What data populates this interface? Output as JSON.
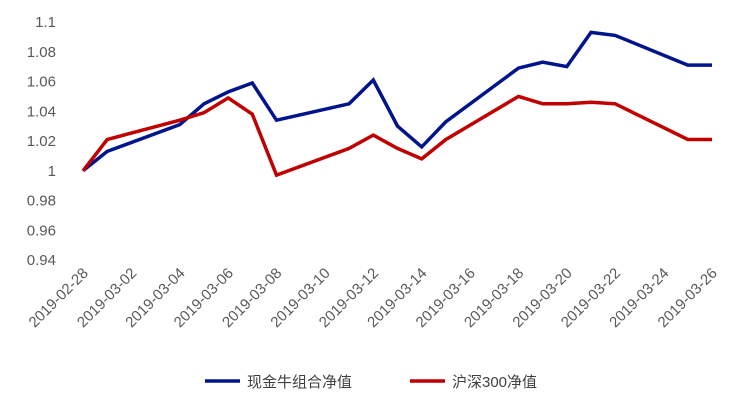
{
  "chart_data": {
    "type": "line",
    "title": "",
    "xlabel": "",
    "ylabel": "",
    "ylim": [
      0.94,
      1.1
    ],
    "yticks": [
      "0.94",
      "0.96",
      "0.98",
      "1",
      "1.02",
      "1.04",
      "1.06",
      "1.08",
      "1.1"
    ],
    "x_tick_labels": [
      "2019-02-28",
      "2019-03-02",
      "2019-03-04",
      "2019-03-06",
      "2019-03-08",
      "2019-03-10",
      "2019-03-12",
      "2019-03-14",
      "2019-03-16",
      "2019-03-18",
      "2019-03-20",
      "2019-03-22",
      "2019-03-24",
      "2019-03-26"
    ],
    "x_range": [
      "2019-02-28",
      "2019-03-26"
    ],
    "grid": false,
    "legend_position": "bottom",
    "series": [
      {
        "name": "现金牛组合净值",
        "color": "#00148C",
        "points": [
          [
            "2019-02-28",
            1.0
          ],
          [
            "2019-03-01",
            1.013
          ],
          [
            "2019-03-04",
            1.031
          ],
          [
            "2019-03-05",
            1.045
          ],
          [
            "2019-03-06",
            1.053
          ],
          [
            "2019-03-07",
            1.059
          ],
          [
            "2019-03-08",
            1.034
          ],
          [
            "2019-03-11",
            1.045
          ],
          [
            "2019-03-12",
            1.061
          ],
          [
            "2019-03-13",
            1.03
          ],
          [
            "2019-03-14",
            1.016
          ],
          [
            "2019-03-15",
            1.033
          ],
          [
            "2019-03-18",
            1.069
          ],
          [
            "2019-03-19",
            1.073
          ],
          [
            "2019-03-20",
            1.07
          ],
          [
            "2019-03-21",
            1.093
          ],
          [
            "2019-03-22",
            1.091
          ],
          [
            "2019-03-25",
            1.071
          ],
          [
            "2019-03-26",
            1.071
          ]
        ]
      },
      {
        "name": "沪深300净值",
        "color": "#C00000",
        "points": [
          [
            "2019-02-28",
            1.0
          ],
          [
            "2019-03-01",
            1.021
          ],
          [
            "2019-03-04",
            1.034
          ],
          [
            "2019-03-05",
            1.039
          ],
          [
            "2019-03-06",
            1.049
          ],
          [
            "2019-03-07",
            1.038
          ],
          [
            "2019-03-08",
            0.997
          ],
          [
            "2019-03-11",
            1.015
          ],
          [
            "2019-03-12",
            1.024
          ],
          [
            "2019-03-13",
            1.015
          ],
          [
            "2019-03-14",
            1.008
          ],
          [
            "2019-03-15",
            1.021
          ],
          [
            "2019-03-18",
            1.05
          ],
          [
            "2019-03-19",
            1.045
          ],
          [
            "2019-03-20",
            1.045
          ],
          [
            "2019-03-21",
            1.046
          ],
          [
            "2019-03-22",
            1.045
          ],
          [
            "2019-03-25",
            1.021
          ],
          [
            "2019-03-26",
            1.021
          ]
        ]
      }
    ]
  }
}
